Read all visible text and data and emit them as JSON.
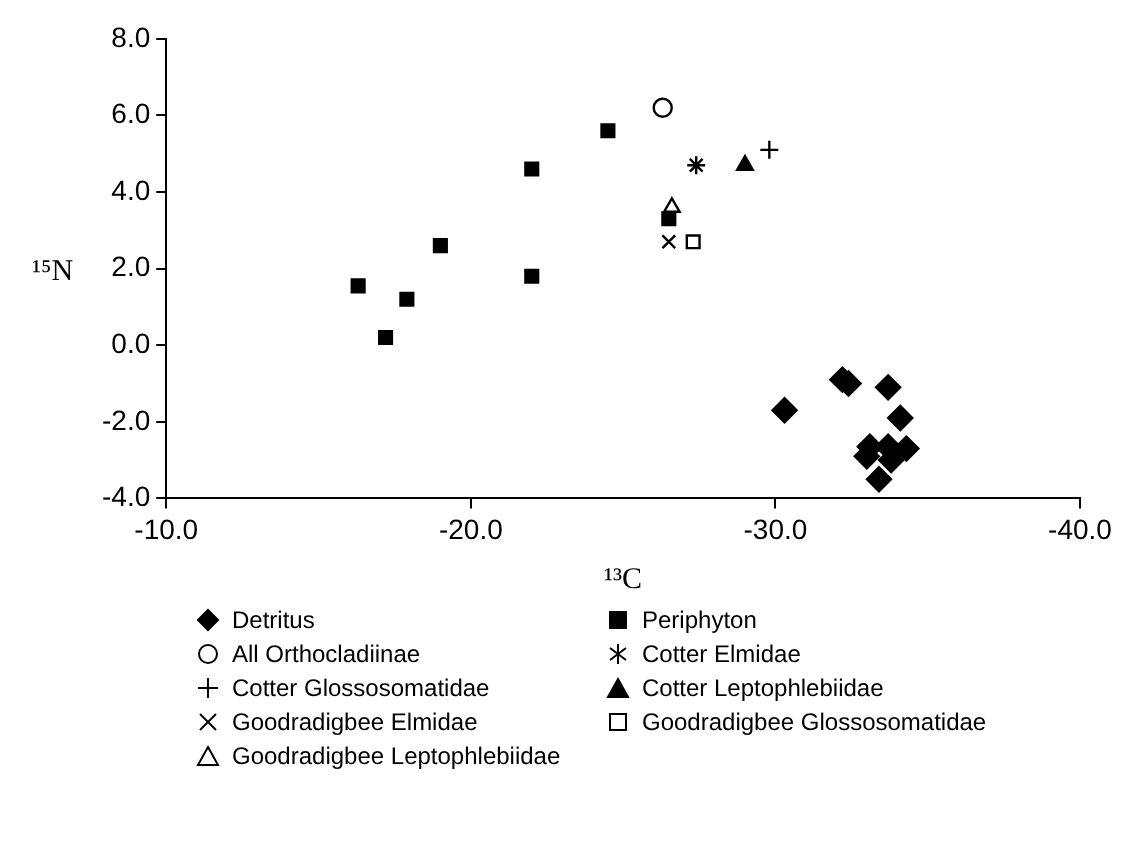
{
  "chart_data": {
    "type": "scatter",
    "xlabel": "¹³C",
    "ylabel": "¹⁵N",
    "legend": "bottom",
    "grid": false,
    "xlim": [
      -10,
      -40
    ],
    "xticks": [
      {
        "value": -10,
        "label": "-10.0"
      },
      {
        "value": -20,
        "label": "-20.0"
      },
      {
        "value": -30,
        "label": "-30.0"
      },
      {
        "value": -40,
        "label": "-40.0"
      }
    ],
    "ylim": [
      -4,
      8
    ],
    "yticks": [
      {
        "value": -4,
        "label": "-4.0"
      },
      {
        "value": -2,
        "label": "-2.0"
      },
      {
        "value": 0,
        "label": "0.0"
      },
      {
        "value": 2,
        "label": "2.0"
      },
      {
        "value": 4,
        "label": "4.0"
      },
      {
        "value": 6,
        "label": "6.0"
      },
      {
        "value": 8,
        "label": "8.0"
      }
    ],
    "series": [
      {
        "name": "Detritus",
        "color": "#000000",
        "marker": "diamond",
        "x": [
          -30.3,
          -32.2,
          -32.4,
          -33.7,
          -34.1,
          -33.1,
          -33.0,
          -33.7,
          -33.8,
          -34.3,
          -33.4
        ],
        "values": [
          -1.7,
          -0.9,
          -1.0,
          -1.1,
          -1.9,
          -2.65,
          -2.9,
          -2.65,
          -3.0,
          -2.7,
          -3.5
        ]
      },
      {
        "name": "Periphyton",
        "color": "#000000",
        "marker": "square",
        "x": [
          -16.3,
          -17.2,
          -17.9,
          -19.0,
          -22.0,
          -22.0,
          -24.5,
          -26.5
        ],
        "values": [
          1.55,
          0.2,
          1.2,
          2.6,
          4.6,
          1.8,
          5.6,
          3.3
        ]
      },
      {
        "name": "All Orthocladiinae",
        "color": "#000000",
        "marker": "circle",
        "x": [
          -26.3
        ],
        "values": [
          6.2
        ]
      },
      {
        "name": "Cotter Elmidae",
        "color": "#000000",
        "marker": "cross",
        "x": [
          -27.4
        ],
        "values": [
          4.7
        ]
      },
      {
        "name": "Cotter Glossosomatidae",
        "color": "#000000",
        "marker": "cross",
        "x": [
          -29.8
        ],
        "values": [
          5.1
        ]
      },
      {
        "name": "Cotter Leptophlebiidae",
        "color": "#000000",
        "marker": "triangle",
        "x": [
          -29.0
        ],
        "values": [
          4.7
        ]
      },
      {
        "name": "Goodradigbee Elmidae",
        "color": "#000000",
        "marker": "cross",
        "x": [
          -26.5
        ],
        "values": [
          2.7
        ]
      },
      {
        "name": "Goodradigbee Glossosomatidae",
        "color": "#000000",
        "marker": "square",
        "x": [
          -27.3
        ],
        "values": [
          2.7
        ]
      },
      {
        "name": "Goodradigbee Leptophlebiidae",
        "color": "#000000",
        "marker": "triangle",
        "x": [
          -26.6
        ],
        "values": [
          3.6
        ]
      }
    ]
  }
}
